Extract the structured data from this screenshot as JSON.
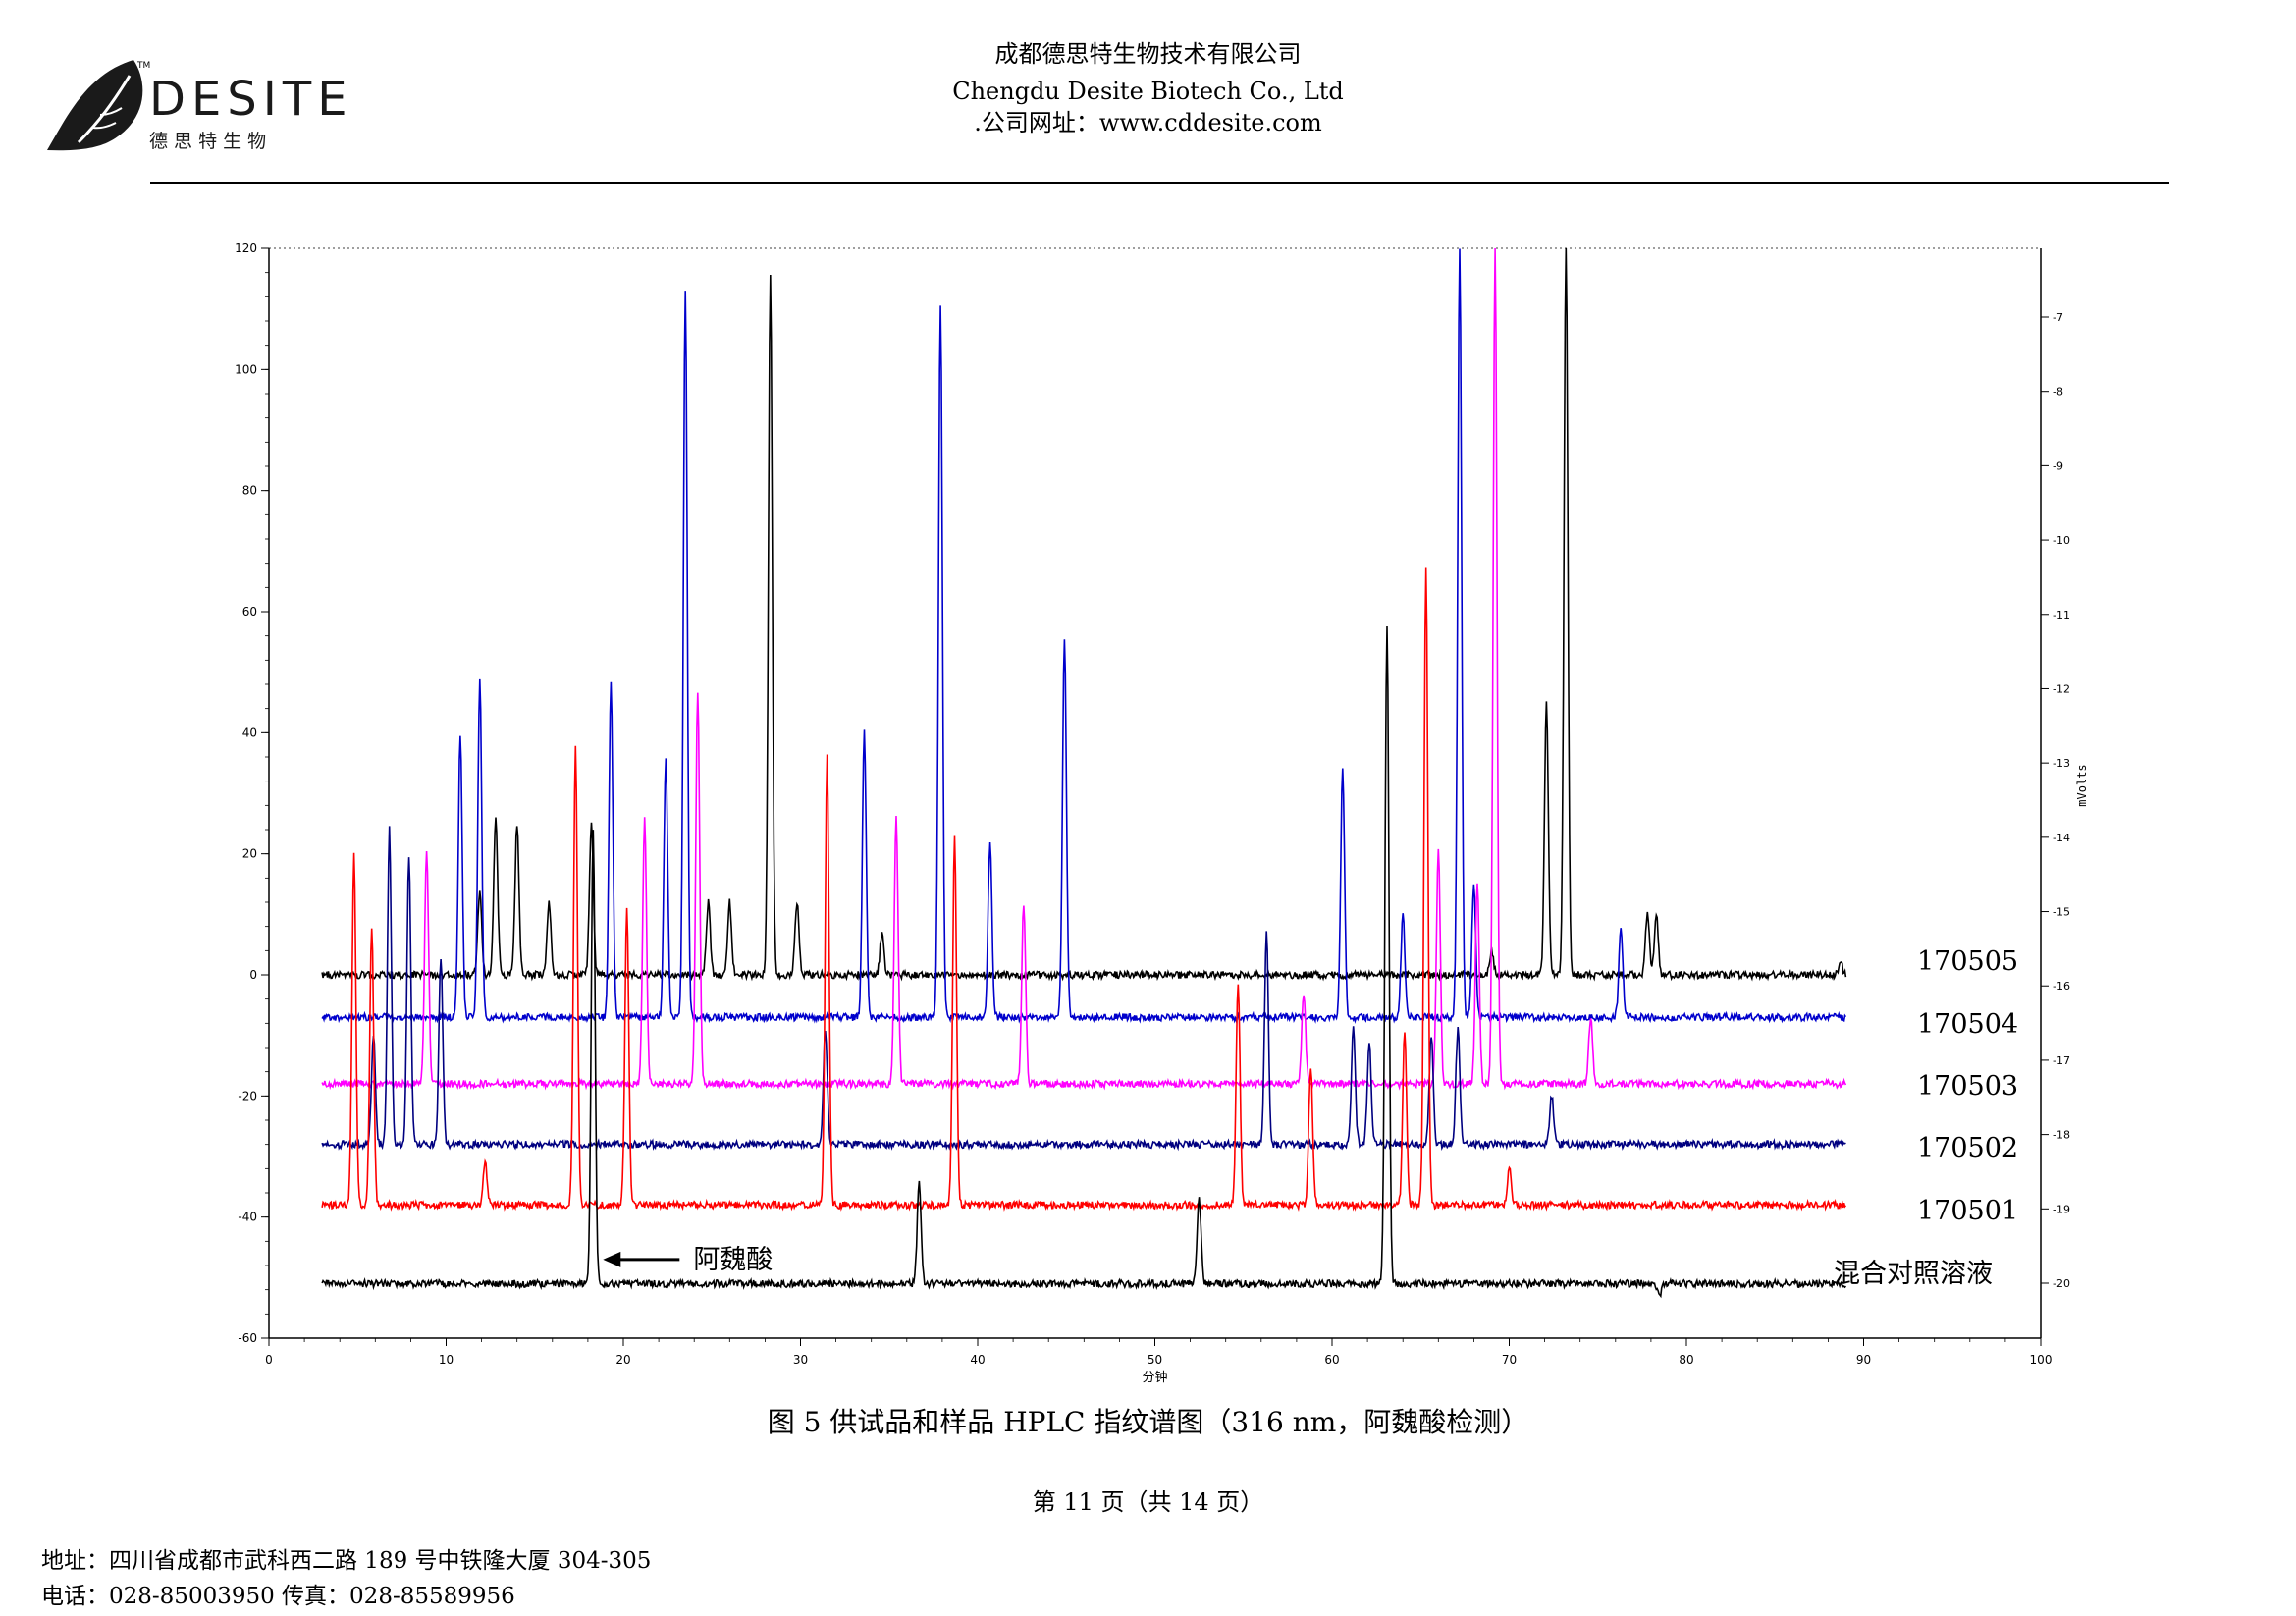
{
  "header": {
    "company_cn": "成都德思特生物技术有限公司",
    "company_en": "Chengdu Desite Biotech Co., Ltd",
    "website": ".公司网址：www.cddesite.com"
  },
  "logo": {
    "brand": "DESITE",
    "brand_cn": "德 思 特 生 物",
    "trademark": "TM"
  },
  "chart_data": {
    "type": "line",
    "xlabel": "分钟",
    "y_right_label": "mVolts",
    "xlim": [
      0,
      100
    ],
    "ylim": [
      -60,
      120
    ],
    "x_ticks": [
      0,
      10,
      20,
      30,
      40,
      50,
      60,
      70,
      80,
      90,
      100
    ],
    "y_ticks": [
      -60,
      -40,
      -20,
      0,
      20,
      40,
      60,
      80,
      100,
      120
    ],
    "y_right_ticks": [
      -7,
      -8,
      -9,
      -10,
      -11,
      -12,
      -13,
      -14,
      -15,
      -16,
      -17,
      -18,
      -19,
      -20
    ],
    "annotation": {
      "text": "阿魏酸",
      "x": 18.3,
      "y": -47
    },
    "series": [
      {
        "name": "170505",
        "color": "#000000",
        "baseline": 0,
        "peaks": [
          [
            11.9,
            14
          ],
          [
            12.8,
            26
          ],
          [
            14.0,
            25
          ],
          [
            15.8,
            12
          ],
          [
            18.2,
            25
          ],
          [
            24.8,
            12
          ],
          [
            26.0,
            12
          ],
          [
            28.3,
            116
          ],
          [
            29.8,
            12
          ],
          [
            34.6,
            7
          ],
          [
            69.0,
            4
          ],
          [
            72.1,
            45
          ],
          [
            73.2,
            120
          ],
          [
            77.8,
            10
          ],
          [
            78.3,
            10
          ],
          [
            88.7,
            2
          ]
        ]
      },
      {
        "name": "170504",
        "color": "#0000cc",
        "baseline": -7,
        "peaks": [
          [
            10.8,
            40
          ],
          [
            11.9,
            49
          ],
          [
            19.3,
            48
          ],
          [
            22.4,
            36
          ],
          [
            23.5,
            113
          ],
          [
            33.6,
            40
          ],
          [
            37.9,
            111
          ],
          [
            40.7,
            22
          ],
          [
            44.9,
            56
          ],
          [
            60.6,
            34
          ],
          [
            64.0,
            10
          ],
          [
            67.2,
            120
          ],
          [
            68.0,
            15
          ],
          [
            76.3,
            8
          ]
        ]
      },
      {
        "name": "170503",
        "color": "#ff00ff",
        "baseline": -18,
        "peaks": [
          [
            8.9,
            21
          ],
          [
            21.2,
            26
          ],
          [
            24.2,
            47
          ],
          [
            35.4,
            26
          ],
          [
            42.6,
            12
          ],
          [
            58.4,
            -3
          ],
          [
            66.0,
            21
          ],
          [
            68.2,
            15
          ],
          [
            69.2,
            120
          ],
          [
            74.6,
            -7
          ]
        ]
      },
      {
        "name": "170502",
        "color": "#000080",
        "baseline": -28,
        "peaks": [
          [
            5.9,
            -10
          ],
          [
            6.8,
            24
          ],
          [
            7.9,
            20
          ],
          [
            9.7,
            3
          ],
          [
            31.4,
            -9
          ],
          [
            56.3,
            7
          ],
          [
            61.2,
            -9
          ],
          [
            62.1,
            -11
          ],
          [
            65.6,
            -10
          ],
          [
            67.1,
            -9
          ],
          [
            72.4,
            -20
          ]
        ]
      },
      {
        "name": "170501",
        "color": "#ff0000",
        "baseline": -38,
        "peaks": [
          [
            4.8,
            20
          ],
          [
            5.8,
            8
          ],
          [
            12.2,
            -31
          ],
          [
            17.3,
            38
          ],
          [
            20.2,
            11
          ],
          [
            31.5,
            36
          ],
          [
            38.7,
            23
          ],
          [
            54.7,
            -1
          ],
          [
            58.8,
            -15
          ],
          [
            64.1,
            -9
          ],
          [
            65.3,
            67
          ],
          [
            70.0,
            -32
          ]
        ]
      },
      {
        "name": "混合对照溶液",
        "color": "#000000",
        "baseline": -51,
        "peaks": [
          [
            18.3,
            24
          ],
          [
            36.7,
            -34
          ],
          [
            52.5,
            -37
          ],
          [
            63.1,
            58
          ],
          [
            78.5,
            -53
          ]
        ]
      }
    ]
  },
  "figure_caption": "图 5  供试品和样品 HPLC 指纹谱图（316 nm，阿魏酸检测）",
  "page_number": "第 11 页（共 14 页）",
  "footer": {
    "address": "地址：四川省成都市武科西二路 189 号中铁隆大厦 304-305",
    "phone_fax": "电话：028-85003950    传真：028-85589956"
  }
}
